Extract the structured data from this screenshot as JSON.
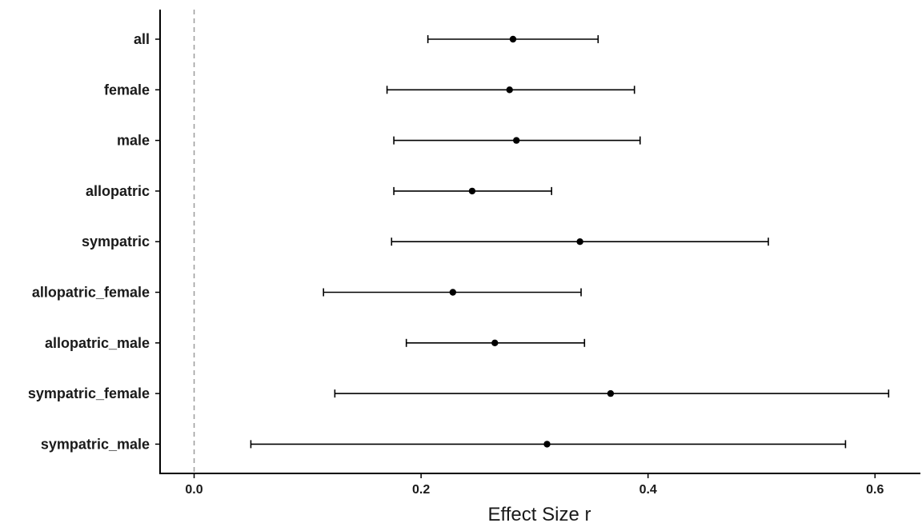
{
  "chart_data": {
    "type": "forest",
    "title": "",
    "xlabel": "Effect Size r",
    "ylabel": "",
    "xlim": [
      -0.03,
      0.64
    ],
    "xticks": [
      0.0,
      0.2,
      0.4,
      0.6
    ],
    "xtick_labels": [
      "0.0",
      "0.2",
      "0.4",
      "0.6"
    ],
    "reference_line": {
      "x": 0,
      "style": "dashed"
    },
    "grid": false,
    "legend": "none",
    "categories": [
      "all",
      "female",
      "male",
      "allopatric",
      "sympatric",
      "allopatric_female",
      "allopatric_male",
      "sympatric_female",
      "sympatric_male"
    ],
    "estimates": [
      0.281,
      0.278,
      0.284,
      0.245,
      0.34,
      0.228,
      0.265,
      0.367,
      0.311
    ],
    "lower": [
      0.206,
      0.17,
      0.176,
      0.176,
      0.174,
      0.114,
      0.187,
      0.124,
      0.05
    ],
    "upper": [
      0.356,
      0.388,
      0.393,
      0.315,
      0.506,
      0.341,
      0.344,
      0.612,
      0.574
    ]
  }
}
